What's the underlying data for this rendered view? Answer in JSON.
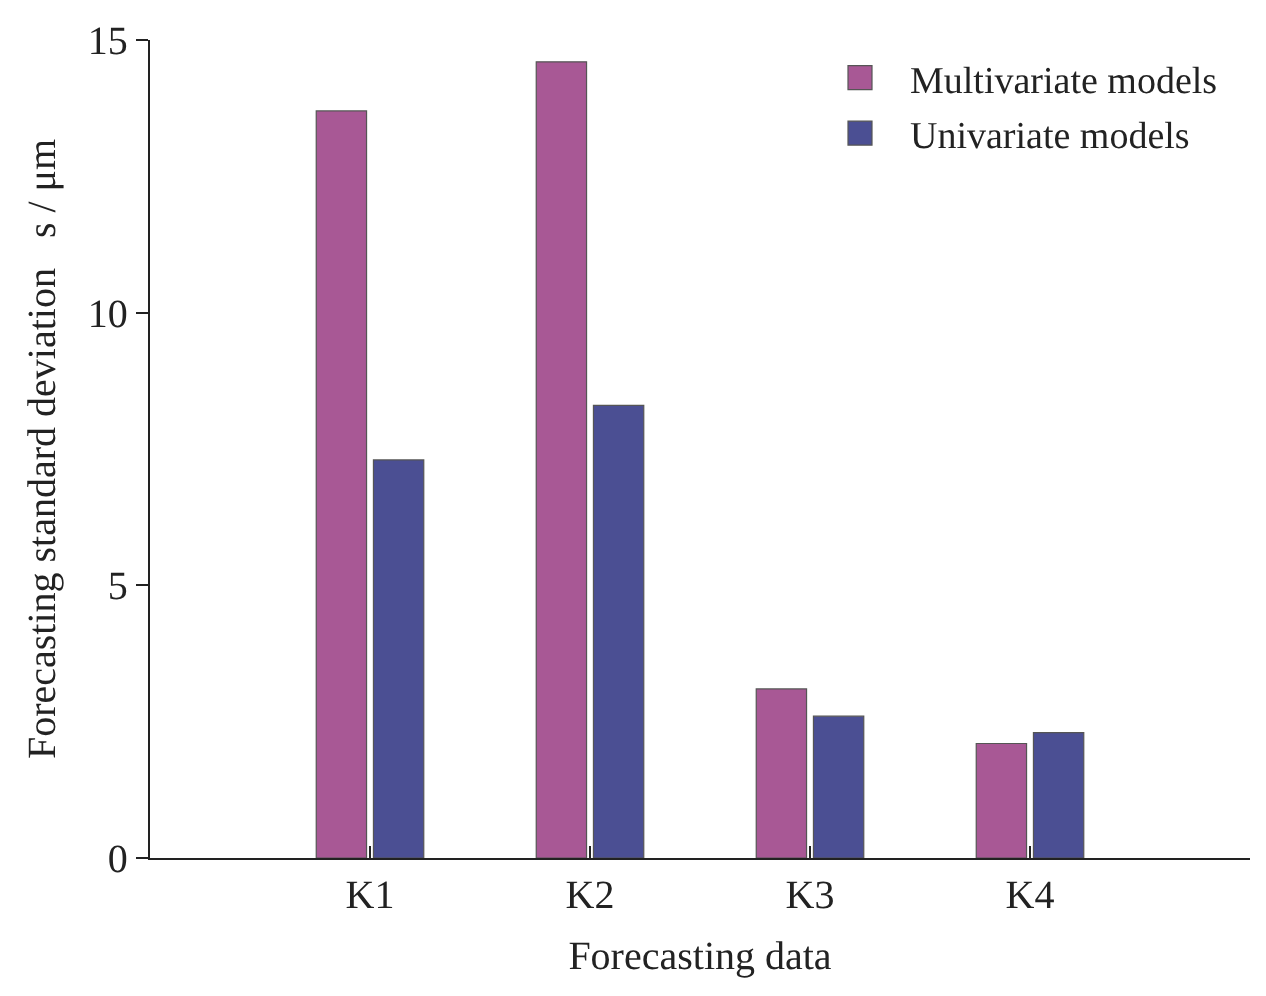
{
  "chart_data": {
    "type": "bar",
    "xlabel": "Forecasting data",
    "ylabel": "Forecasting standard deviation   s / μm",
    "categories": [
      "K1",
      "K2",
      "K3",
      "K4"
    ],
    "series": [
      {
        "name": "Multivariate models",
        "color": "#a85895",
        "values": [
          13.7,
          14.6,
          3.1,
          2.1
        ]
      },
      {
        "name": "Univariate models",
        "color": "#4b4f93",
        "values": [
          7.3,
          8.3,
          2.6,
          2.3
        ]
      }
    ],
    "ylim": [
      0,
      15
    ],
    "yticks": [
      0,
      5,
      10,
      15
    ],
    "grid": false,
    "legend": "top right"
  }
}
